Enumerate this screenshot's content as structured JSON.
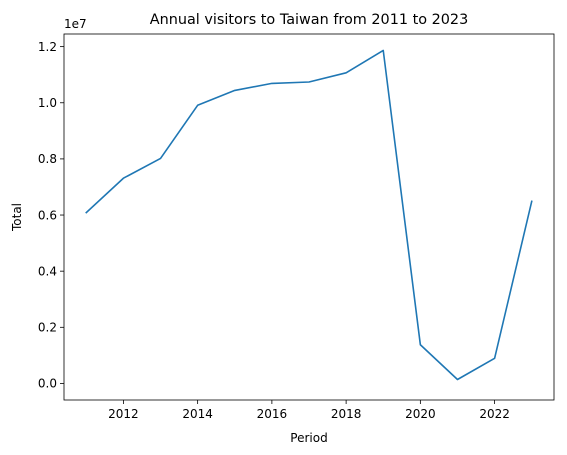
{
  "chart_data": {
    "type": "line",
    "title": "Annual visitors to Taiwan from 2011 to 2023",
    "xlabel": "Period",
    "ylabel": "Total",
    "y_offset_label": "1e7",
    "x": [
      2011,
      2012,
      2013,
      2014,
      2015,
      2016,
      2017,
      2018,
      2019,
      2020,
      2021,
      2022,
      2023
    ],
    "series": [
      {
        "values": [
          6087484,
          7311470,
          8016280,
          9910204,
          10439785,
          10690279,
          10739601,
          11066707,
          11864105,
          1377861,
          140479,
          895962,
          6486951
        ]
      }
    ],
    "xlim": [
      2010.4,
      2023.6
    ],
    "ylim": [
      -590000,
      12450000
    ],
    "xticks": [
      2012,
      2014,
      2016,
      2018,
      2020,
      2022
    ],
    "yticks": [
      0,
      2000000,
      4000000,
      6000000,
      8000000,
      10000000,
      12000000
    ],
    "ytick_labels": [
      "0.0",
      "0.2",
      "0.4",
      "0.6",
      "0.8",
      "1.0",
      "1.2"
    ],
    "grid": false,
    "legend": "none",
    "line_color": "#1f77b4"
  }
}
